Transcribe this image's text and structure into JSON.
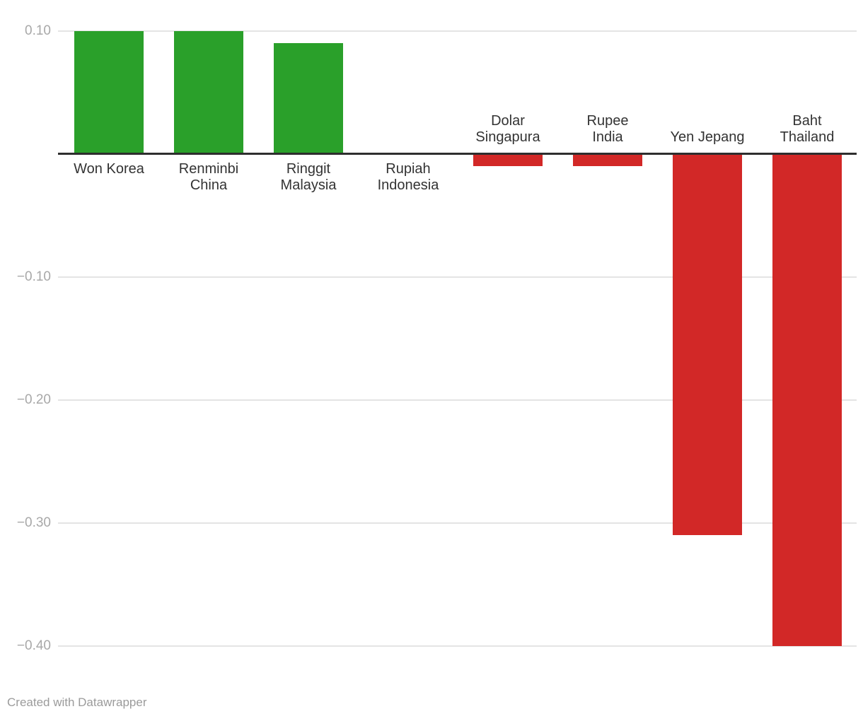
{
  "chart_data": {
    "type": "bar",
    "categories": [
      "Won Korea",
      "Renminbi China",
      "Ringgit Malaysia",
      "Rupiah Indonesia",
      "Dolar Singapura",
      "Rupee India",
      "Yen Jepang",
      "Baht Thailand"
    ],
    "category_lines": [
      [
        "Won Korea"
      ],
      [
        "Renminbi",
        "China"
      ],
      [
        "Ringgit",
        "Malaysia"
      ],
      [
        "Rupiah",
        "Indonesia"
      ],
      [
        "Dolar",
        "Singapura"
      ],
      [
        "Rupee",
        "India"
      ],
      [
        "Yen Jepang"
      ],
      [
        "Baht",
        "Thailand"
      ]
    ],
    "values": [
      0.1,
      0.1,
      0.09,
      0.0,
      -0.01,
      -0.01,
      -0.31,
      -0.4
    ],
    "y_ticks": [
      {
        "label": "0.10",
        "value": 0.1
      },
      {
        "label": "−0.10",
        "value": -0.1
      },
      {
        "label": "−0.20",
        "value": -0.2
      },
      {
        "label": "−0.30",
        "value": -0.3
      },
      {
        "label": "−0.40",
        "value": -0.4
      }
    ],
    "ylim": [
      -0.44,
      0.11
    ],
    "grid": true,
    "legend": "none",
    "title": "",
    "xlabel": "",
    "ylabel": "",
    "positive_color": "#2aa02a",
    "negative_color": "#d22827",
    "gridline_color": "#e4e4e4",
    "baseline_color": "#2e2e2e",
    "tick_label_color": "#a8a8a8",
    "category_label_color": "#333333"
  },
  "footer": {
    "credit": "Created with Datawrapper"
  }
}
